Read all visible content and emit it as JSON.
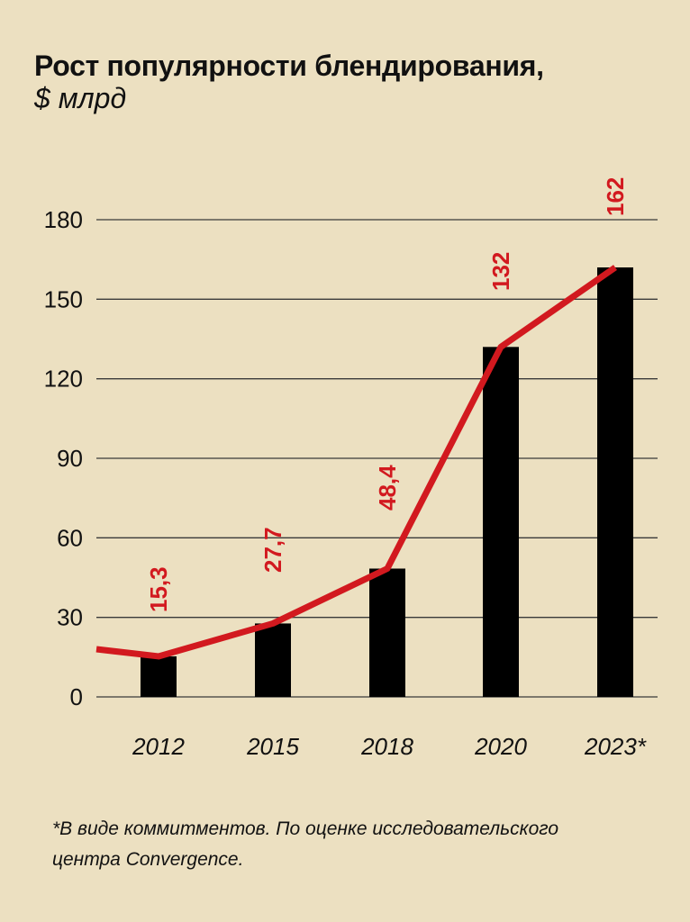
{
  "title": "Рост популярности блендирования,",
  "subtitle": "$ млрд",
  "footnote": "*В виде коммитментов. По оценке исследовательского центра Convergence.",
  "colors": {
    "background": "#ece0c1",
    "bar": "#000000",
    "line": "#d2191f",
    "grid": "#3a3a3a"
  },
  "chart_data": {
    "type": "bar",
    "categories": [
      "2012",
      "2015",
      "2018",
      "2020",
      "2023*"
    ],
    "values": [
      15.3,
      27.7,
      48.4,
      132,
      162
    ],
    "value_labels": [
      "15,3",
      "27,7",
      "48,4",
      "132",
      "162"
    ],
    "overlay_line": {
      "type": "line",
      "values": [
        15.3,
        27.7,
        48.4,
        132,
        162
      ],
      "start_value": 18
    },
    "yticks": [
      0,
      30,
      60,
      90,
      120,
      150,
      180
    ],
    "ylim": [
      0,
      180
    ],
    "grid": true,
    "legend": "none",
    "xlabel": "",
    "ylabel": ""
  }
}
